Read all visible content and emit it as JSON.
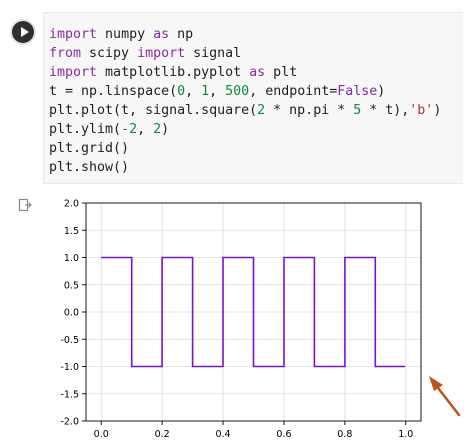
{
  "code_cell": {
    "run_button": "run",
    "lines": [
      [
        {
          "t": "import",
          "c": "kw"
        },
        {
          "t": " numpy ",
          "c": ""
        },
        {
          "t": "as",
          "c": "kw"
        },
        {
          "t": " np",
          "c": ""
        }
      ],
      [
        {
          "t": "from",
          "c": "kw"
        },
        {
          "t": " scipy ",
          "c": ""
        },
        {
          "t": "import",
          "c": "kw"
        },
        {
          "t": " signal",
          "c": ""
        }
      ],
      [
        {
          "t": "import",
          "c": "kw"
        },
        {
          "t": " matplotlib.pyplot ",
          "c": ""
        },
        {
          "t": "as",
          "c": "kw"
        },
        {
          "t": " plt",
          "c": ""
        }
      ],
      [
        {
          "t": "t = np.linspace(",
          "c": ""
        },
        {
          "t": "0",
          "c": "num"
        },
        {
          "t": ", ",
          "c": ""
        },
        {
          "t": "1",
          "c": "num"
        },
        {
          "t": ", ",
          "c": ""
        },
        {
          "t": "500",
          "c": "num"
        },
        {
          "t": ", endpoint=",
          "c": ""
        },
        {
          "t": "False",
          "c": "kw"
        },
        {
          "t": ")",
          "c": ""
        }
      ],
      [
        {
          "t": "plt.plot(t, signal.square(",
          "c": ""
        },
        {
          "t": "2",
          "c": "num"
        },
        {
          "t": " * np.pi * ",
          "c": ""
        },
        {
          "t": "5",
          "c": "num"
        },
        {
          "t": " * t),",
          "c": ""
        },
        {
          "t": "'b'",
          "c": "str"
        },
        {
          "t": ")",
          "c": ""
        }
      ],
      [
        {
          "t": "plt.ylim(",
          "c": ""
        },
        {
          "t": "-2",
          "c": "num"
        },
        {
          "t": ", ",
          "c": ""
        },
        {
          "t": "2",
          "c": "num"
        },
        {
          "t": ")",
          "c": ""
        }
      ],
      [
        {
          "t": "plt.grid()",
          "c": ""
        }
      ],
      [
        {
          "t": "plt.show()",
          "c": ""
        }
      ]
    ]
  },
  "icons": {
    "run": "play-icon",
    "output": "output-icon",
    "annotation": "arrow-icon"
  },
  "colors": {
    "line": "#7a12c8",
    "arrow": "#c0521a"
  },
  "chart_data": {
    "type": "line",
    "xlim": [
      -0.05,
      1.05
    ],
    "ylim": [
      -2,
      2
    ],
    "xticks": [
      "0.0",
      "0.2",
      "0.4",
      "0.6",
      "0.8",
      "1.0"
    ],
    "yticks": [
      "-2.0",
      "-1.5",
      "-1.0",
      "-0.5",
      "0.0",
      "0.5",
      "1.0",
      "1.5",
      "2.0"
    ],
    "grid": true,
    "series": [
      {
        "x": [
          0.0,
          0.1,
          0.1,
          0.2,
          0.2,
          0.3,
          0.3,
          0.4,
          0.4,
          0.5,
          0.5,
          0.6,
          0.6,
          0.7,
          0.7,
          0.8,
          0.8,
          0.9,
          0.9,
          0.998
        ],
        "y": [
          1,
          1,
          -1,
          -1,
          1,
          1,
          -1,
          -1,
          1,
          1,
          -1,
          -1,
          1,
          1,
          -1,
          -1,
          1,
          1,
          -1,
          -1
        ]
      }
    ]
  }
}
